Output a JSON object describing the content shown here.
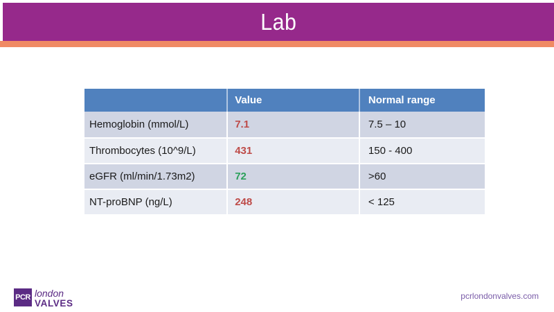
{
  "slide": {
    "title": "Lab",
    "footer_url": "pcrlondonvalves.com",
    "logo": {
      "square_text": "PCR",
      "line1": "london",
      "line2": "VALVES"
    }
  },
  "table": {
    "headers": {
      "label": "",
      "value": "Value",
      "range": "Normal range"
    },
    "rows": [
      {
        "label": "Hemoglobin (mmol/L)",
        "value": "7.1",
        "status": "abnormal",
        "range": "7.5 – 10"
      },
      {
        "label": "Thrombocytes (10^9/L)",
        "value": "431",
        "status": "abnormal",
        "range": "150 - 400"
      },
      {
        "label": "eGFR (ml/min/1.73m2)",
        "value": "72",
        "status": "normal",
        "range": ">60"
      },
      {
        "label": "NT-proBNP (ng/L)",
        "value": "248",
        "status": "abnormal",
        "range": "< 125"
      }
    ]
  },
  "colors": {
    "header_purple": "#96298b",
    "accent_orange": "#f08a64",
    "table_header_blue": "#5081be",
    "row_band_dark": "#d0d5e3",
    "row_band_light": "#e9ecf3",
    "value_abnormal": "#be4b48",
    "value_normal": "#2ba05a",
    "logo_purple": "#5b2b84",
    "url_purple": "#7a5ca8"
  }
}
